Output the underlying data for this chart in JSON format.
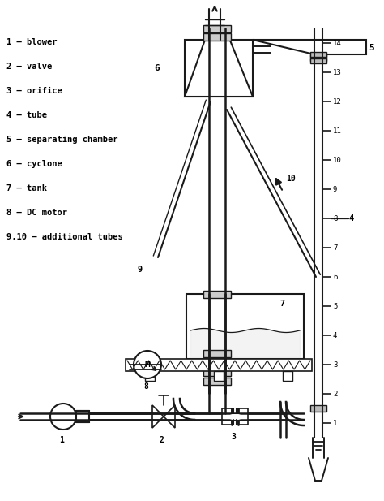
{
  "bg_color": "#ffffff",
  "line_color": "#1a1a1a",
  "legend": [
    "1 – blower",
    "2 – valve",
    "3 – orifice",
    "4 – tube",
    "5 – separating chamber",
    "6 – cyclone",
    "7 – tank",
    "8 – DC motor",
    "9,10 – additional tubes"
  ],
  "figsize": [
    4.74,
    6.17
  ],
  "dpi": 100
}
